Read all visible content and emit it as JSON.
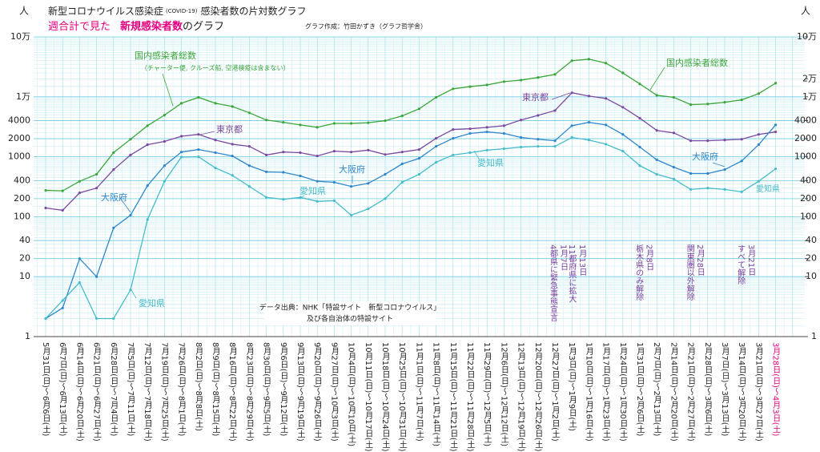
{
  "chart_data": {
    "type": "line",
    "title": "新型コロナウイルス感染症",
    "title_note": "(COVID-19)",
    "title_rest": "感染者数の片対数グラフ",
    "subtitle_parts": [
      "週合計で見た",
      "新規感染者数",
      "のグラフ"
    ],
    "credit": "グラフ作成：竹田かずき（グラフ哲学舎）",
    "source": [
      "データ出典：NHK「特設サイト　新型コロナウイルス」",
      "及び各自治体の特設サイト"
    ],
    "y_unit": "人",
    "yscale": "log",
    "grid": true,
    "highlight_last_category_color": "#e4007f",
    "categories": [
      "5月31日(日)〜6月6日(土)",
      "6月7日(日)〜6月13日(土)",
      "6月14日(日)〜6月20日(土)",
      "6月21日(日)〜6月27日(土)",
      "6月28日(日)〜7月4日(土)",
      "7月5日(日)〜7月11日(土)",
      "7月12日(日)〜7月18日(土)",
      "7月19日(日)〜7月25日(土)",
      "7月26日(日)〜8月1日(土)",
      "8月2日(日)〜8月8日(土)",
      "8月9日(日)〜8月15日(土)",
      "8月16日(日)〜8月22日(土)",
      "8月23日(日)〜8月29日(土)",
      "8月30日(日)〜9月5日(土)",
      "9月6日(日)〜9月12日(土)",
      "9月13日(日)〜9月19日(土)",
      "9月20日(日)〜9月26日(土)",
      "9月27日(日)〜10月3日(土)",
      "10月4日(日)〜10月10日(土)",
      "10月11日(日)〜10月17日(土)",
      "10月18日(日)〜10月24日(土)",
      "10月25日(日)〜10月31日(土)",
      "11月1日(日)〜11月7日(土)",
      "11月8日(日)〜11月14日(土)",
      "11月15日(日)〜11月21日(土)",
      "11月22日(日)〜11月28日(土)",
      "11月29日(日)〜12月5日(土)",
      "12月6日(日)〜12月12日(土)",
      "12月13日(日)〜12月19日(土)",
      "12月20日(日)〜12月26日(土)",
      "12月27日(日)〜1月2日(土)",
      "1月3日(日)〜1月9日(土)",
      "1月10日(日)〜1月16日(土)",
      "1月17日(日)〜1月23日(土)",
      "1月24日(日)〜1月30日(土)",
      "1月31日(日)〜2月6日(土)",
      "2月7日(日)〜2月13日(土)",
      "2月14日(日)〜2月20日(土)",
      "2月21日(日)〜2月27日(土)",
      "2月28日(日)〜3月6日(土)",
      "3月7日(日)〜3月13日(土)",
      "3月14日(日)〜3月20日(土)",
      "3月21日(日)〜3月27日(土)",
      "3月28日(日)〜4月3日(土)"
    ],
    "series": [
      {
        "name": "国内感染者総数",
        "note": "（チャーター便, クルーズ船, 空港検疫は含まない）",
        "color": "#3aa63a",
        "values": [
          275,
          270,
          390,
          510,
          1170,
          1960,
          3300,
          4950,
          7800,
          9800,
          7800,
          6900,
          5400,
          4100,
          3750,
          3400,
          3100,
          3600,
          3600,
          3700,
          4000,
          4800,
          6300,
          9800,
          13600,
          14800,
          15800,
          17900,
          19000,
          21000,
          23600,
          40000,
          42500,
          36500,
          25000,
          16400,
          10600,
          9800,
          7400,
          7600,
          8100,
          8900,
          11300,
          16900
        ]
      },
      {
        "name": "東京都",
        "color": "#7a4aa0",
        "values": [
          140,
          128,
          250,
          300,
          610,
          1070,
          1590,
          1800,
          2200,
          2360,
          1900,
          1620,
          1490,
          1070,
          1200,
          1170,
          1030,
          1240,
          1200,
          1290,
          1090,
          1200,
          1320,
          2030,
          2850,
          2930,
          3100,
          3300,
          4100,
          4900,
          5900,
          11700,
          10300,
          9400,
          6700,
          4400,
          2750,
          2500,
          1850,
          1850,
          1900,
          1960,
          2360,
          2600
        ]
      },
      {
        "name": "大阪府",
        "color": "#2f86cc",
        "values": [
          2,
          3,
          20,
          10,
          65,
          106,
          330,
          710,
          1200,
          1320,
          1170,
          1030,
          710,
          560,
          550,
          480,
          390,
          375,
          320,
          360,
          510,
          760,
          940,
          1490,
          2030,
          2450,
          2600,
          2450,
          2100,
          1960,
          1850,
          3300,
          3750,
          3400,
          2360,
          1450,
          890,
          670,
          525,
          525,
          610,
          850,
          1590,
          3400
        ]
      },
      {
        "name": "愛知県",
        "color": "#45bccc",
        "values": [
          2,
          4,
          8,
          2,
          2,
          6,
          90,
          390,
          990,
          1000,
          650,
          490,
          320,
          210,
          195,
          210,
          180,
          185,
          106,
          135,
          200,
          375,
          510,
          810,
          1070,
          1170,
          1290,
          1360,
          1450,
          1490,
          1490,
          2100,
          1900,
          1620,
          1240,
          710,
          510,
          425,
          285,
          300,
          285,
          260,
          390,
          630
        ]
      }
    ],
    "ylim": [
      1,
      100000
    ],
    "yticks": [
      1,
      10,
      20,
      40,
      100,
      200,
      400,
      1000,
      2000,
      4000,
      {
        "value": 10000,
        "label": "1万"
      },
      {
        "value": 100000,
        "label": "10万"
      }
    ],
    "y2lim": [
      1,
      100000
    ],
    "y2ticks": [
      1,
      10,
      20,
      40,
      100,
      200,
      400,
      1000,
      2000,
      4000,
      {
        "value": 10000,
        "label": "1万"
      },
      {
        "value": 20000,
        "label": "2万"
      },
      {
        "value": 100000,
        "label": "10万"
      }
    ],
    "annotations": [
      {
        "date": "1月7日",
        "text": "4都県に緊急事態宣言"
      },
      {
        "date": "1月13日",
        "text": "11都府県に拡大"
      },
      {
        "date": "2月8日",
        "text": "栃木県のみ解除"
      },
      {
        "date": "2月28日",
        "text": "関東圏以外解除"
      },
      {
        "date": "3月21日",
        "text": "すべて解除"
      }
    ]
  }
}
